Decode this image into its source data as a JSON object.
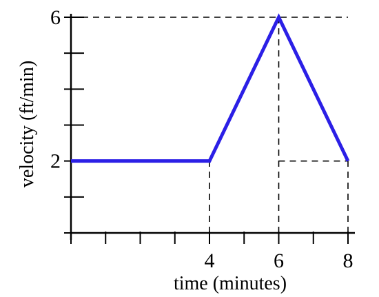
{
  "chart_data": {
    "type": "line",
    "title": "",
    "xlabel": "time (minutes)",
    "ylabel": "velocity (ft/min)",
    "xlim": [
      0,
      8
    ],
    "ylim": [
      0,
      6
    ],
    "x_tick_labels": [
      {
        "value": 4,
        "label": "4"
      },
      {
        "value": 6,
        "label": "6"
      },
      {
        "value": 8,
        "label": "8"
      }
    ],
    "y_tick_labels": [
      {
        "value": 2,
        "label": "2"
      },
      {
        "value": 6,
        "label": "6"
      }
    ],
    "x_ticks": [
      0,
      1,
      2,
      3,
      4,
      5,
      6,
      7,
      8
    ],
    "y_ticks": [
      0,
      1,
      2,
      3,
      4,
      5,
      6
    ],
    "series": [
      {
        "x": [
          0,
          4,
          6,
          8
        ],
        "y": [
          2,
          2,
          6,
          2
        ],
        "color": "#2b1fe6"
      }
    ],
    "guides": [
      {
        "from": [
          4,
          0
        ],
        "to": [
          4,
          2
        ]
      },
      {
        "from": [
          6,
          0
        ],
        "to": [
          6,
          6
        ]
      },
      {
        "from": [
          8,
          0
        ],
        "to": [
          8,
          2
        ]
      },
      {
        "from": [
          0,
          6
        ],
        "to": [
          8,
          6
        ]
      },
      {
        "from": [
          6,
          2
        ],
        "to": [
          8,
          2
        ]
      }
    ],
    "grid": false,
    "legend": "none"
  }
}
